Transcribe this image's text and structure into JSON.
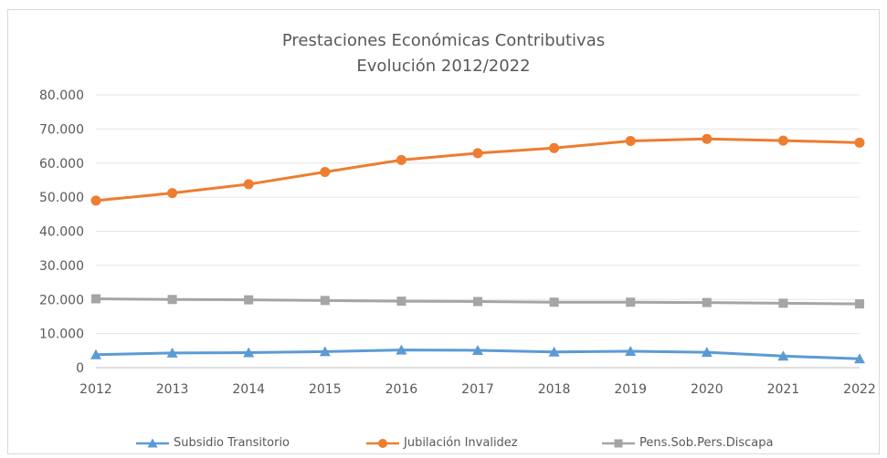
{
  "chart_data": {
    "type": "line",
    "title": "Prestaciones Económicas Contributivas",
    "subtitle": "Evolución 2012/2022",
    "x": [
      "2012",
      "2013",
      "2014",
      "2015",
      "2016",
      "2017",
      "2018",
      "2019",
      "2020",
      "2021",
      "2022"
    ],
    "ylim": [
      0,
      80000
    ],
    "yticks": [
      "0",
      "10.000",
      "20.000",
      "30.000",
      "40.000",
      "50.000",
      "60.000",
      "70.000",
      "80.000"
    ],
    "grid": true,
    "legend_position": "bottom",
    "series": [
      {
        "name": "Subsidio Transitorio",
        "color": "#5b9bd5",
        "marker": "triangle",
        "values": [
          3800,
          4300,
          4400,
          4700,
          5200,
          5100,
          4600,
          4800,
          4500,
          3400,
          2600
        ]
      },
      {
        "name": "Jubilación Invalidez",
        "color": "#ed7d31",
        "marker": "circle",
        "values": [
          49000,
          51200,
          53800,
          57400,
          60900,
          62900,
          64400,
          66500,
          67100,
          66600,
          66000
        ]
      },
      {
        "name": "Pens.Sob.Pers.Discapa",
        "color": "#a5a5a5",
        "marker": "square",
        "values": [
          20200,
          20000,
          19900,
          19700,
          19500,
          19400,
          19200,
          19200,
          19100,
          18900,
          18700
        ]
      }
    ]
  }
}
